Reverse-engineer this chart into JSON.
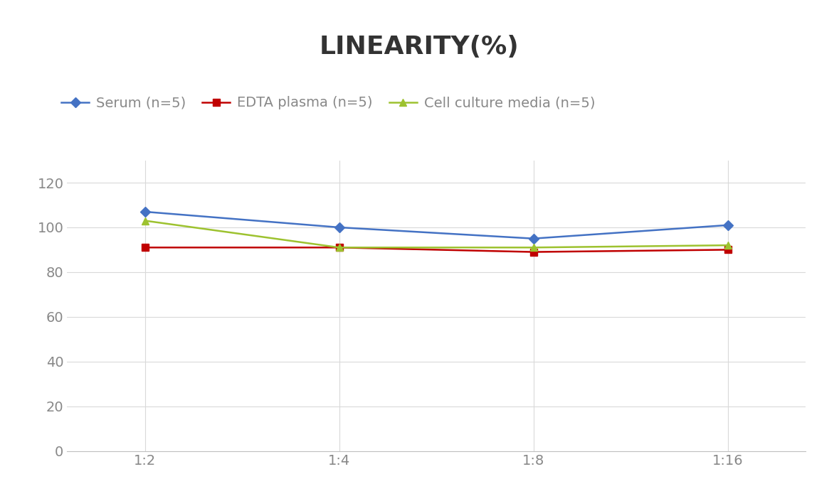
{
  "title": "LINEARITY(%)",
  "x_labels": [
    "1:2",
    "1:4",
    "1:8",
    "1:16"
  ],
  "x_positions": [
    0,
    1,
    2,
    3
  ],
  "series": [
    {
      "name": "Serum (n=5)",
      "values": [
        107,
        100,
        95,
        101
      ],
      "color": "#4472C4",
      "marker": "D",
      "markersize": 7,
      "linewidth": 1.8
    },
    {
      "name": "EDTA plasma (n=5)",
      "values": [
        91,
        91,
        89,
        90
      ],
      "color": "#C00000",
      "marker": "s",
      "markersize": 7,
      "linewidth": 1.8
    },
    {
      "name": "Cell culture media (n=5)",
      "values": [
        103,
        91,
        91,
        92
      ],
      "color": "#9DC22F",
      "marker": "^",
      "markersize": 7,
      "linewidth": 1.8
    }
  ],
  "ylim": [
    0,
    130
  ],
  "yticks": [
    0,
    20,
    40,
    60,
    80,
    100,
    120
  ],
  "title_fontsize": 26,
  "legend_fontsize": 14,
  "tick_fontsize": 14,
  "tick_color": "#888888",
  "background_color": "#FFFFFF",
  "grid_color": "#D9D9D9",
  "spine_color": "#C0C0C0"
}
